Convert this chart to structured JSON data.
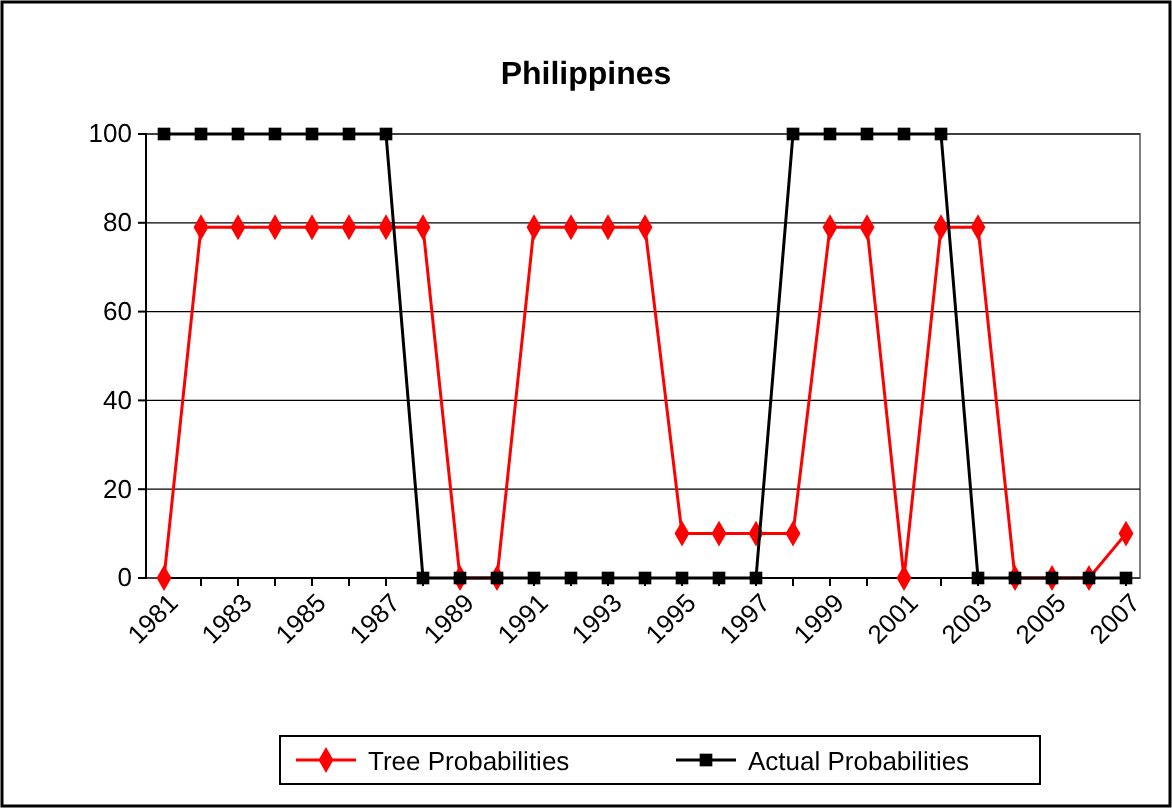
{
  "chart_data": {
    "type": "line",
    "title": "Philippines",
    "categories": [
      "1981",
      null,
      "1983",
      null,
      "1985",
      null,
      "1987",
      null,
      "1989",
      null,
      "1991",
      null,
      "1993",
      null,
      "1995",
      null,
      "1997",
      null,
      "1999",
      null,
      "2001",
      null,
      "2003",
      null,
      "2005",
      null,
      "2007"
    ],
    "series": [
      {
        "name": "Tree Probabilities",
        "color": "#ff0000",
        "marker": "diamond",
        "values": [
          0,
          79,
          79,
          79,
          79,
          79,
          79,
          79,
          0,
          0,
          79,
          79,
          79,
          79,
          10,
          10,
          10,
          10,
          79,
          79,
          0,
          79,
          79,
          0,
          0,
          0,
          10
        ]
      },
      {
        "name": "Actual Probabilities",
        "color": "#000000",
        "marker": "square",
        "values": [
          100,
          100,
          100,
          100,
          100,
          100,
          100,
          0,
          0,
          0,
          0,
          0,
          0,
          0,
          0,
          0,
          0,
          100,
          100,
          100,
          100,
          100,
          0,
          0,
          0,
          0,
          0
        ]
      }
    ],
    "ylim": [
      0,
      100
    ],
    "yticks": [
      0,
      20,
      40,
      60,
      80,
      100
    ],
    "grid": "y",
    "legend": "bottom"
  }
}
